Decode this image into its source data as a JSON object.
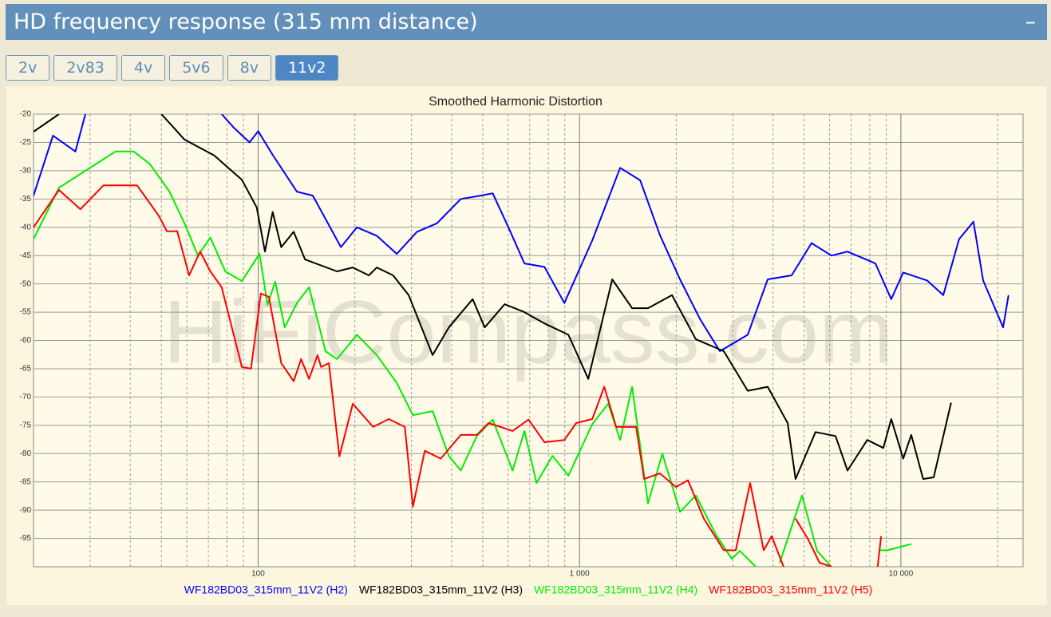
{
  "header": {
    "title": "HD frequency response (315 mm distance)",
    "toggle": "–"
  },
  "tabs": [
    "2v",
    "2v83",
    "4v",
    "5v6",
    "8v",
    "11v2"
  ],
  "active_tab": 5,
  "chart_data": {
    "type": "line",
    "title": "Smoothed Harmonic Distortion",
    "watermark": "HiFiCompass.com",
    "xscale": "log",
    "xlim": [
      20,
      24000
    ],
    "ylim": [
      -100,
      -20
    ],
    "xticks": [
      100,
      {
        "value": 1000,
        "label": "1 000"
      },
      {
        "value": 10000,
        "label": "10 000"
      }
    ],
    "xminor": [
      30,
      40,
      50,
      60,
      70,
      80,
      90,
      200,
      300,
      400,
      500,
      600,
      700,
      800,
      900,
      2000,
      3000,
      4000,
      5000,
      6000,
      7000,
      8000,
      9000,
      20000
    ],
    "yticks": [
      -20,
      -25,
      -30,
      -35,
      -40,
      -45,
      -50,
      -55,
      -60,
      -65,
      -70,
      -75,
      -80,
      -85,
      -90,
      -95
    ],
    "grid": true,
    "legend": "bottom",
    "series": [
      {
        "name": "WF182BD03_315mm_11V2 (H2)",
        "color": "#0000ff",
        "x": [
          20,
          23,
          27,
          29,
          50,
          77,
          84,
          94,
          100,
          111,
          132,
          148,
          181,
          203,
          234,
          270,
          312,
          360,
          427,
          492,
          537,
          601,
          674,
          778,
          897,
          1096,
          1338,
          1544,
          1780,
          2054,
          2370,
          2734,
          3339,
          3852,
          4571,
          5272,
          6083,
          6823,
          8335,
          9333,
          10170,
          12070,
          13550,
          15170,
          16820,
          18030,
          20800,
          21630
        ],
        "values": [
          -34.4,
          -23.8,
          -26.6,
          -20,
          null,
          -20,
          -22.4,
          -25,
          -23,
          -27.2,
          -33.7,
          -34.4,
          -43.5,
          -40,
          -41.5,
          -44.7,
          -40.8,
          -39.3,
          -35,
          -34.4,
          -34,
          -40,
          -46.4,
          -47,
          -53.4,
          -42.3,
          -29.5,
          -31.7,
          -41.4,
          -49.2,
          -56.2,
          -61.9,
          -59,
          -49.2,
          -48.5,
          -42.8,
          -45,
          -44.3,
          -46.4,
          -52.7,
          -48,
          -49.4,
          -52,
          -42.1,
          -39,
          -49.4,
          -57.7,
          -52
        ]
      },
      {
        "name": "WF182BD03_315mm_11V2 (H3)",
        "color": "#000000",
        "x": [
          20,
          24,
          35,
          50,
          59,
          73,
          89,
          99,
          105,
          111,
          118,
          129,
          140,
          176,
          197,
          221,
          234,
          263,
          294,
          349,
          392,
          465,
          507,
          585,
          674,
          778,
          923,
          1065,
          1264,
          1458,
          1633,
          1940,
          2302,
          2812,
          3339,
          3852,
          4443,
          4702,
          5425,
          6262,
          6823,
          7863,
          8818,
          9333,
          10170,
          10770,
          11730,
          12650,
          14330
        ],
        "values": [
          -23.1,
          -20,
          null,
          -20,
          -24.5,
          -27.3,
          -31.6,
          -36.5,
          -44.3,
          -37.3,
          -43.5,
          -40.8,
          -45.7,
          -47.8,
          -47.1,
          -48.5,
          -47.1,
          -48.5,
          -52,
          -62.6,
          -57.7,
          -52.7,
          -57.7,
          -53.6,
          -55,
          -57,
          -59,
          -66.8,
          -49.2,
          -54.3,
          -54.3,
          -52,
          -59.8,
          -61.9,
          -68.9,
          -68.2,
          -74.6,
          -84.5,
          -76.2,
          -76.9,
          -83,
          -77.6,
          -79,
          -73.9,
          -80.9,
          -76.7,
          -84.5,
          -84.2,
          -71
        ]
      },
      {
        "name": "WF182BD03_315mm_11V2 (H4)",
        "color": "#00ee00",
        "x": [
          20,
          24,
          36,
          41,
          46,
          53,
          59,
          65,
          71,
          79,
          89,
          101,
          107,
          113,
          121,
          132,
          144,
          162,
          176,
          203,
          234,
          270,
          303,
          349,
          392,
          427,
          479,
          537,
          619,
          674,
          735,
          824,
          923,
          1096,
          1228,
          1338,
          1458,
          1633,
          1811,
          2054,
          2302,
          2656,
          2978,
          3154,
          3532,
          3800,
          4198,
          4925,
          5486,
          6083,
          7000,
          8578,
          9078,
          10770
        ],
        "values": [
          -42.1,
          -33,
          -26.6,
          -26.6,
          -28.8,
          -33.7,
          -39.3,
          -45,
          -41.8,
          -47.8,
          -49.5,
          -44.7,
          -53.7,
          -49.6,
          -57.7,
          -53.4,
          -50.6,
          -61.9,
          -63.3,
          -59,
          -62.6,
          -67.5,
          -73.2,
          -72.5,
          -80.4,
          -83,
          -76.9,
          -74,
          -83,
          -76,
          -85.2,
          -80.4,
          -83.9,
          -74.8,
          -71.2,
          -77.6,
          -68.2,
          -88.8,
          -80,
          -90.3,
          -87.4,
          -94.3,
          -98.6,
          -97.2,
          -100,
          null,
          -99.3,
          -87.4,
          -97.2,
          -100,
          null,
          -97.1,
          -97.1,
          -96
        ]
      },
      {
        "name": "WF182BD03_315mm_11V2 (H5)",
        "color": "#ff0000",
        "x": [
          20,
          24,
          28,
          33,
          42,
          49,
          52,
          56,
          61,
          66,
          71,
          77,
          89,
          95,
          102,
          108,
          118,
          129,
          136,
          144,
          153,
          157,
          166,
          179,
          197,
          228,
          255,
          286,
          303,
          330,
          370,
          427,
          479,
          521,
          619,
          694,
          778,
          897,
          977,
          1096,
          1194,
          1300,
          1500,
          1589,
          1780,
          1995,
          2175,
          2438,
          2812,
          3063,
          3396,
          3742,
          3963,
          4315,
          4500,
          4702,
          5129,
          5585,
          6083,
          7000,
          8470,
          8680
        ],
        "values": [
          -40,
          -33.4,
          -36.8,
          -32.6,
          -32.6,
          -37.9,
          -40.7,
          -40.7,
          -48.5,
          -44.3,
          -47.8,
          -50.6,
          -64.7,
          -65,
          -51.7,
          -52.3,
          -64,
          -67.2,
          -63.3,
          -66.8,
          -62.6,
          -64.7,
          -64,
          -80.5,
          -71.2,
          -75.3,
          -73.9,
          -75.3,
          -89.4,
          -79.5,
          -80.9,
          -76.7,
          -76.7,
          -74.6,
          -76,
          -74,
          -78,
          -77.6,
          -74.6,
          -73.9,
          -68.2,
          -75.3,
          -75.3,
          -84.5,
          -83.5,
          -85.9,
          -84.7,
          -91.5,
          -97.1,
          -97.1,
          -85.2,
          -97.1,
          -94.6,
          -100,
          null,
          -91.5,
          -95,
          -99.3,
          -100,
          null,
          -100,
          -94.6
        ]
      }
    ]
  }
}
